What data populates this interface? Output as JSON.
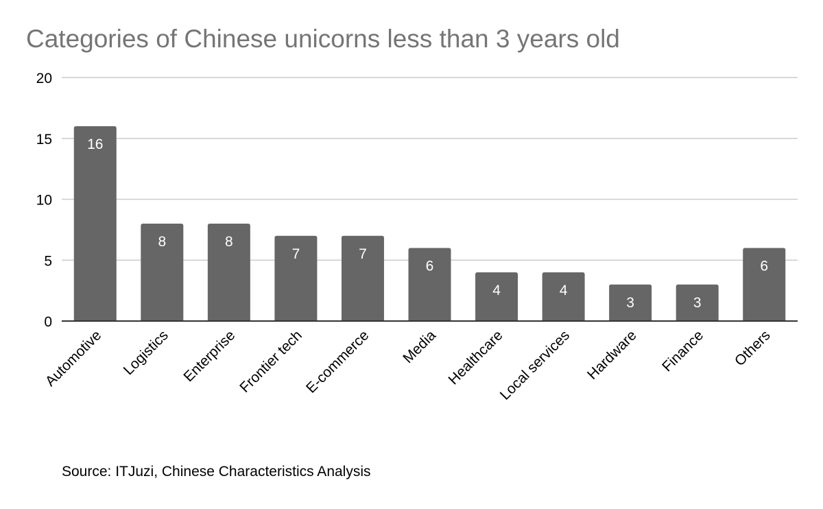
{
  "title": "Categories of Chinese unicorns less than 3 years old",
  "source": "Source: ITJuzi, Chinese Characteristics Analysis",
  "colors": {
    "bar": "#666666",
    "grid": "#cccccc",
    "axis": "#333333",
    "label": "#ffffff",
    "title": "#757575"
  },
  "chart_data": {
    "type": "bar",
    "title": "Categories of Chinese unicorns less than 3 years old",
    "categories": [
      "Automotive",
      "Logistics",
      "Enterprise",
      "Frontier tech",
      "E-commerce",
      "Media",
      "Healthcare",
      "Local services",
      "Hardware",
      "Finance",
      "Others"
    ],
    "values": [
      16,
      8,
      8,
      7,
      7,
      6,
      4,
      4,
      3,
      3,
      6
    ],
    "ylim": [
      0,
      20
    ],
    "yticks": [
      0,
      5,
      10,
      15,
      20
    ],
    "xlabel": "",
    "ylabel": "",
    "grid": true,
    "data_labels": true
  }
}
